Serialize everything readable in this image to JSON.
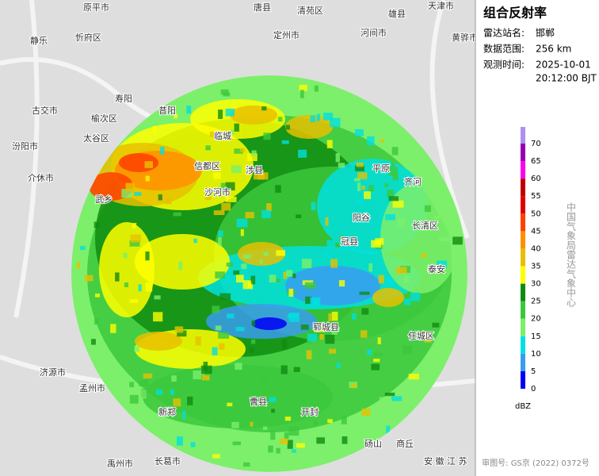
{
  "panel": {
    "title": "组合反射率",
    "station_label": "雷达站名:",
    "station": "邯郸",
    "range_label": "数据范围:",
    "range": "256 km",
    "time_label": "观测时间:",
    "date": "2025-10-01",
    "time": "20:12:00 BJT"
  },
  "legend": {
    "ticks": [
      0,
      5,
      10,
      15,
      20,
      25,
      30,
      35,
      40,
      45,
      50,
      55,
      60,
      65,
      70
    ],
    "colors": [
      "#0000f6",
      "#3a9cf0",
      "#00e0e0",
      "#7cf06a",
      "#3cc83c",
      "#108c10",
      "#ffff00",
      "#e8c000",
      "#ff9000",
      "#ff4000",
      "#e00000",
      "#c00000",
      "#ff00f0",
      "#9600b4",
      "#ad90f0"
    ],
    "unit": "dBZ"
  },
  "credit": "中国气象局雷达气象中心",
  "footer": "审图号: GS京 (2022) 0372号",
  "places": [
    "原平市",
    "唐县",
    "清苑区",
    "雄县",
    "天津市",
    "静乐",
    "忻府区",
    "定州市",
    "河间市",
    "黄骅市",
    "寿阳",
    "榆次区",
    "太谷区",
    "汾阳市",
    "介休市",
    "武乡",
    "信都区",
    "沙河市",
    "临城",
    "平原",
    "齐河",
    "长清区",
    "泰安",
    "郓城县",
    "任城区",
    "曹县",
    "长葛市",
    "禹州市",
    "济源市",
    "孟州市",
    "新郑",
    "开封",
    "商丘",
    "砀山",
    "安 徽 江 苏",
    "古交市",
    "昔阳",
    "涉县",
    "阳谷",
    "冠县"
  ]
}
